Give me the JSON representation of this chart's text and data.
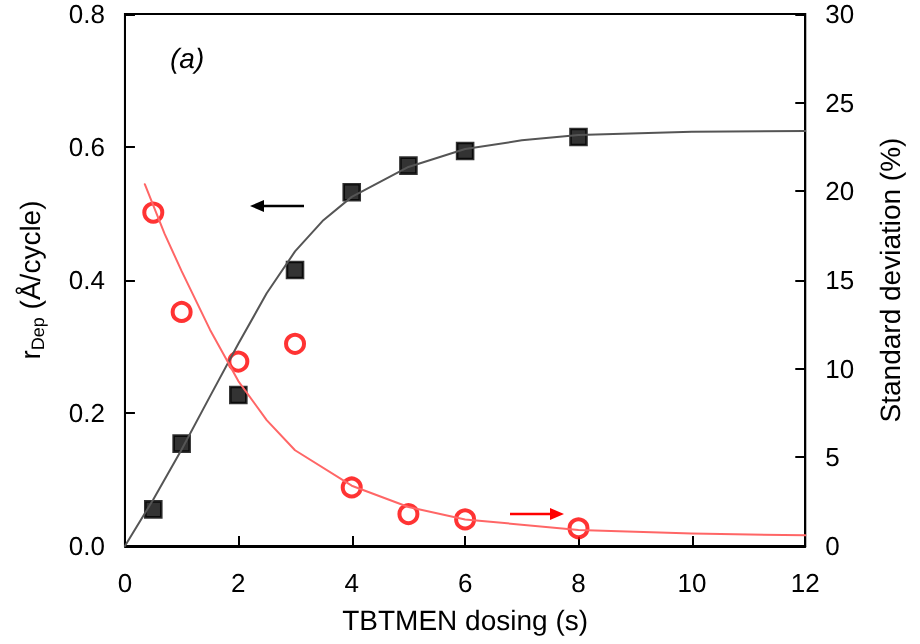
{
  "chart_data": {
    "type": "scatter",
    "xlabel": "TBTMEN dosing (s)",
    "ylabel": "r$_{Dep}$ (Å/cycle)",
    "y2label": "Standard deviation (%)",
    "annotations": [
      "(a)"
    ],
    "xlim": [
      0,
      12
    ],
    "xticks": [
      0,
      2,
      4,
      6,
      8,
      10,
      12
    ],
    "ylim": [
      0,
      0.8
    ],
    "yticks": [
      {
        "value": 0,
        "label": "0.0"
      },
      {
        "value": 0.2,
        "label": "0.2"
      },
      {
        "value": 0.4,
        "label": "0.4"
      },
      {
        "value": 0.6,
        "label": "0.6"
      },
      {
        "value": 0.8,
        "label": "0.8"
      }
    ],
    "y2lim": [
      0,
      30
    ],
    "y2ticks": [
      0,
      5,
      10,
      15,
      20,
      25,
      30
    ],
    "grid": false,
    "series": [
      {
        "marker": "square",
        "color": "#000000",
        "x": [
          0.5,
          1,
          2,
          3,
          4,
          5,
          6,
          8
        ],
        "values": [
          0.055,
          0.154,
          0.227,
          0.415,
          0.532,
          0.572,
          0.594,
          0.615
        ]
      },
      {
        "marker": "circle",
        "axis": "y2",
        "color": "#ff0000",
        "x": [
          0.5,
          1,
          2,
          3,
          4,
          5,
          6,
          8
        ],
        "values": [
          18.8,
          13.2,
          10.4,
          11.4,
          3.3,
          1.8,
          1.5,
          1.0
        ]
      },
      {
        "type": "line",
        "marker": "none",
        "line_style": "solid",
        "color": "#555555",
        "x": [
          0,
          0.5,
          1,
          1.5,
          2,
          2.5,
          3,
          3.5,
          4,
          5,
          6,
          7,
          8,
          10,
          12
        ],
        "values": [
          0,
          0.07,
          0.145,
          0.225,
          0.304,
          0.38,
          0.443,
          0.49,
          0.525,
          0.57,
          0.597,
          0.61,
          0.618,
          0.623,
          0.624
        ]
      },
      {
        "type": "line",
        "marker": "none",
        "line_style": "solid",
        "axis": "y2",
        "color": "#ff6666",
        "x": [
          0.35,
          0.7,
          1,
          1.5,
          2,
          2.5,
          3,
          4,
          5,
          6,
          8,
          10,
          12
        ],
        "values": [
          20.4,
          17.6,
          15.5,
          12.2,
          9.3,
          7.1,
          5.4,
          3.4,
          2.2,
          1.5,
          0.9,
          0.7,
          0.6
        ]
      }
    ]
  }
}
